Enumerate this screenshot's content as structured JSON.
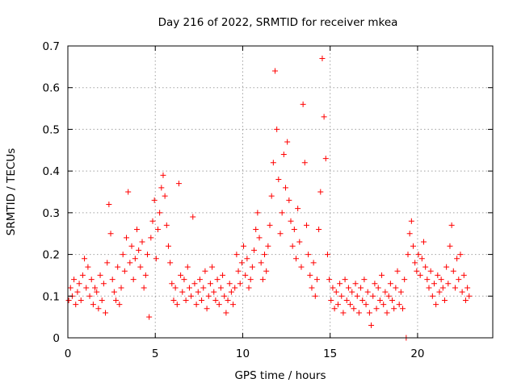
{
  "chart_data": {
    "type": "scatter",
    "title": "Day 216 of 2022, SRMTID for receiver mkea",
    "xlabel": "GPS time / hours",
    "ylabel": "SRMTID / TECUs",
    "xlim": [
      0,
      24.3
    ],
    "ylim": [
      0,
      0.7
    ],
    "xticks": [
      0,
      5,
      10,
      15,
      20
    ],
    "yticks": [
      0,
      0.1,
      0.2,
      0.3,
      0.4,
      0.5,
      0.6,
      0.7
    ],
    "xtick_labels": [
      "0",
      "5",
      "10",
      "15",
      "20"
    ],
    "ytick_labels": [
      "0",
      "0.1",
      "0.2",
      "0.3",
      "0.4",
      "0.5",
      "0.6",
      "0.7"
    ],
    "grid": true,
    "marker": "plus",
    "color": "#ff0000",
    "series": [
      {
        "name": "mkea",
        "points": [
          [
            0.05,
            0.09
          ],
          [
            0.15,
            0.12
          ],
          [
            0.25,
            0.1
          ],
          [
            0.35,
            0.14
          ],
          [
            0.45,
            0.08
          ],
          [
            0.55,
            0.11
          ],
          [
            0.65,
            0.13
          ],
          [
            0.75,
            0.09
          ],
          [
            0.85,
            0.15
          ],
          [
            0.95,
            0.19
          ],
          [
            1.05,
            0.12
          ],
          [
            1.15,
            0.17
          ],
          [
            1.25,
            0.1
          ],
          [
            1.35,
            0.14
          ],
          [
            1.45,
            0.08
          ],
          [
            1.55,
            0.12
          ],
          [
            1.65,
            0.11
          ],
          [
            1.75,
            0.07
          ],
          [
            1.85,
            0.15
          ],
          [
            1.95,
            0.09
          ],
          [
            2.05,
            0.13
          ],
          [
            2.15,
            0.06
          ],
          [
            2.25,
            0.18
          ],
          [
            2.35,
            0.32
          ],
          [
            2.45,
            0.25
          ],
          [
            2.55,
            0.14
          ],
          [
            2.65,
            0.11
          ],
          [
            2.75,
            0.09
          ],
          [
            2.85,
            0.17
          ],
          [
            2.95,
            0.08
          ],
          [
            3.05,
            0.12
          ],
          [
            3.15,
            0.2
          ],
          [
            3.25,
            0.16
          ],
          [
            3.35,
            0.24
          ],
          [
            3.45,
            0.35
          ],
          [
            3.55,
            0.18
          ],
          [
            3.65,
            0.22
          ],
          [
            3.75,
            0.14
          ],
          [
            3.85,
            0.19
          ],
          [
            3.95,
            0.26
          ],
          [
            4.05,
            0.21
          ],
          [
            4.15,
            0.17
          ],
          [
            4.25,
            0.23
          ],
          [
            4.35,
            0.12
          ],
          [
            4.45,
            0.15
          ],
          [
            4.55,
            0.2
          ],
          [
            4.65,
            0.05
          ],
          [
            4.75,
            0.24
          ],
          [
            4.85,
            0.28
          ],
          [
            4.95,
            0.33
          ],
          [
            5.05,
            0.19
          ],
          [
            5.15,
            0.26
          ],
          [
            5.25,
            0.3
          ],
          [
            5.35,
            0.36
          ],
          [
            5.45,
            0.39
          ],
          [
            5.55,
            0.34
          ],
          [
            5.65,
            0.27
          ],
          [
            5.75,
            0.22
          ],
          [
            5.85,
            0.18
          ],
          [
            5.95,
            0.13
          ],
          [
            6.05,
            0.09
          ],
          [
            6.15,
            0.12
          ],
          [
            6.25,
            0.08
          ],
          [
            6.35,
            0.37
          ],
          [
            6.45,
            0.15
          ],
          [
            6.55,
            0.11
          ],
          [
            6.65,
            0.14
          ],
          [
            6.75,
            0.09
          ],
          [
            6.85,
            0.17
          ],
          [
            6.95,
            0.12
          ],
          [
            7.05,
            0.1
          ],
          [
            7.15,
            0.29
          ],
          [
            7.25,
            0.13
          ],
          [
            7.35,
            0.08
          ],
          [
            7.45,
            0.11
          ],
          [
            7.55,
            0.14
          ],
          [
            7.65,
            0.09
          ],
          [
            7.75,
            0.12
          ],
          [
            7.85,
            0.16
          ],
          [
            7.95,
            0.07
          ],
          [
            8.05,
            0.1
          ],
          [
            8.15,
            0.13
          ],
          [
            8.25,
            0.17
          ],
          [
            8.35,
            0.11
          ],
          [
            8.45,
            0.09
          ],
          [
            8.55,
            0.14
          ],
          [
            8.65,
            0.08
          ],
          [
            8.75,
            0.12
          ],
          [
            8.85,
            0.15
          ],
          [
            8.95,
            0.1
          ],
          [
            9.05,
            0.06
          ],
          [
            9.15,
            0.09
          ],
          [
            9.25,
            0.13
          ],
          [
            9.35,
            0.11
          ],
          [
            9.45,
            0.08
          ],
          [
            9.55,
            0.12
          ],
          [
            9.65,
            0.2
          ],
          [
            9.75,
            0.16
          ],
          [
            9.85,
            0.13
          ],
          [
            9.95,
            0.18
          ],
          [
            10.05,
            0.22
          ],
          [
            10.15,
            0.15
          ],
          [
            10.25,
            0.19
          ],
          [
            10.35,
            0.12
          ],
          [
            10.45,
            0.14
          ],
          [
            10.55,
            0.17
          ],
          [
            10.65,
            0.21
          ],
          [
            10.75,
            0.26
          ],
          [
            10.85,
            0.3
          ],
          [
            10.95,
            0.24
          ],
          [
            11.05,
            0.18
          ],
          [
            11.15,
            0.14
          ],
          [
            11.25,
            0.2
          ],
          [
            11.35,
            0.16
          ],
          [
            11.45,
            0.22
          ],
          [
            11.55,
            0.27
          ],
          [
            11.65,
            0.34
          ],
          [
            11.75,
            0.42
          ],
          [
            11.85,
            0.64
          ],
          [
            11.95,
            0.5
          ],
          [
            12.05,
            0.38
          ],
          [
            12.15,
            0.25
          ],
          [
            12.25,
            0.3
          ],
          [
            12.35,
            0.44
          ],
          [
            12.45,
            0.36
          ],
          [
            12.55,
            0.47
          ],
          [
            12.65,
            0.33
          ],
          [
            12.75,
            0.28
          ],
          [
            12.85,
            0.22
          ],
          [
            12.95,
            0.26
          ],
          [
            13.05,
            0.19
          ],
          [
            13.15,
            0.31
          ],
          [
            13.25,
            0.23
          ],
          [
            13.35,
            0.17
          ],
          [
            13.45,
            0.56
          ],
          [
            13.55,
            0.42
          ],
          [
            13.65,
            0.27
          ],
          [
            13.75,
            0.2
          ],
          [
            13.85,
            0.15
          ],
          [
            13.95,
            0.12
          ],
          [
            14.05,
            0.18
          ],
          [
            14.15,
            0.1
          ],
          [
            14.25,
            0.14
          ],
          [
            14.35,
            0.26
          ],
          [
            14.45,
            0.35
          ],
          [
            14.55,
            0.67
          ],
          [
            14.65,
            0.53
          ],
          [
            14.75,
            0.43
          ],
          [
            14.85,
            0.2
          ],
          [
            14.95,
            0.14
          ],
          [
            15.05,
            0.09
          ],
          [
            15.15,
            0.12
          ],
          [
            15.25,
            0.07
          ],
          [
            15.35,
            0.11
          ],
          [
            15.45,
            0.08
          ],
          [
            15.55,
            0.13
          ],
          [
            15.65,
            0.1
          ],
          [
            15.75,
            0.06
          ],
          [
            15.85,
            0.14
          ],
          [
            15.95,
            0.09
          ],
          [
            16.05,
            0.12
          ],
          [
            16.15,
            0.08
          ],
          [
            16.25,
            0.11
          ],
          [
            16.35,
            0.07
          ],
          [
            16.45,
            0.13
          ],
          [
            16.55,
            0.1
          ],
          [
            16.65,
            0.06
          ],
          [
            16.75,
            0.12
          ],
          [
            16.85,
            0.09
          ],
          [
            16.95,
            0.14
          ],
          [
            17.05,
            0.08
          ],
          [
            17.15,
            0.11
          ],
          [
            17.25,
            0.06
          ],
          [
            17.35,
            0.03
          ],
          [
            17.45,
            0.1
          ],
          [
            17.55,
            0.13
          ],
          [
            17.65,
            0.07
          ],
          [
            17.75,
            0.12
          ],
          [
            17.85,
            0.09
          ],
          [
            17.95,
            0.15
          ],
          [
            18.05,
            0.08
          ],
          [
            18.15,
            0.11
          ],
          [
            18.25,
            0.06
          ],
          [
            18.35,
            0.1
          ],
          [
            18.45,
            0.13
          ],
          [
            18.55,
            0.09
          ],
          [
            18.65,
            0.07
          ],
          [
            18.75,
            0.12
          ],
          [
            18.85,
            0.16
          ],
          [
            18.95,
            0.08
          ],
          [
            19.05,
            0.11
          ],
          [
            19.15,
            0.07
          ],
          [
            19.25,
            0.14
          ],
          [
            19.35,
            0.0
          ],
          [
            19.45,
            0.2
          ],
          [
            19.55,
            0.25
          ],
          [
            19.65,
            0.28
          ],
          [
            19.75,
            0.22
          ],
          [
            19.85,
            0.18
          ],
          [
            19.95,
            0.16
          ],
          [
            20.05,
            0.2
          ],
          [
            20.15,
            0.15
          ],
          [
            20.25,
            0.19
          ],
          [
            20.35,
            0.23
          ],
          [
            20.45,
            0.17
          ],
          [
            20.55,
            0.14
          ],
          [
            20.65,
            0.12
          ],
          [
            20.75,
            0.16
          ],
          [
            20.85,
            0.1
          ],
          [
            20.95,
            0.13
          ],
          [
            21.05,
            0.08
          ],
          [
            21.15,
            0.15
          ],
          [
            21.25,
            0.11
          ],
          [
            21.35,
            0.14
          ],
          [
            21.45,
            0.12
          ],
          [
            21.55,
            0.09
          ],
          [
            21.65,
            0.17
          ],
          [
            21.75,
            0.13
          ],
          [
            21.85,
            0.22
          ],
          [
            21.95,
            0.27
          ],
          [
            22.05,
            0.16
          ],
          [
            22.15,
            0.12
          ],
          [
            22.25,
            0.19
          ],
          [
            22.35,
            0.14
          ],
          [
            22.45,
            0.2
          ],
          [
            22.55,
            0.11
          ],
          [
            22.65,
            0.15
          ],
          [
            22.75,
            0.09
          ],
          [
            22.85,
            0.12
          ],
          [
            22.95,
            0.1
          ]
        ]
      }
    ]
  }
}
